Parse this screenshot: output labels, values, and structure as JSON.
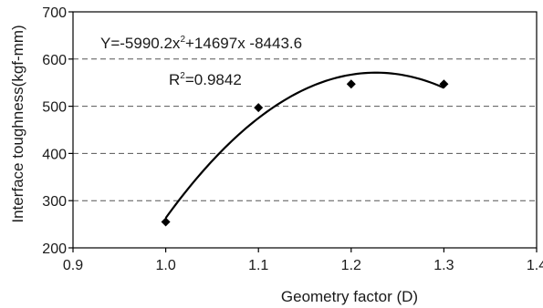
{
  "chart_data": {
    "type": "scatter",
    "xlabel": "Geometry factor (D)",
    "ylabel": "Interface toughness(kgf-mm)",
    "xlim": [
      0.9,
      1.4
    ],
    "ylim": [
      200,
      700
    ],
    "x_ticks": [
      "0.9",
      "1.0",
      "1.1",
      "1.2",
      "1.3",
      "1.4"
    ],
    "y_ticks": [
      "200",
      "300",
      "400",
      "500",
      "600",
      "700"
    ],
    "grid": "horizontal dashed",
    "series": [
      {
        "marker": "diamond",
        "color": "#000000",
        "points": [
          {
            "x": 1.0,
            "y": 255
          },
          {
            "x": 1.1,
            "y": 497
          },
          {
            "x": 1.2,
            "y": 547
          },
          {
            "x": 1.3,
            "y": 547
          }
        ]
      }
    ],
    "trendline": {
      "kind": "polynomial",
      "a": -5990.2,
      "b": 14697,
      "c": -8443.6,
      "x_range": [
        1.0,
        1.3
      ]
    },
    "annotations": {
      "equation_main": "Y=-5990.2x",
      "equation_sup": "2",
      "equation_rest": "+14697x -8443.6",
      "r2_main": "R",
      "r2_sup": "2",
      "r2_rest": "=0.9842"
    }
  }
}
